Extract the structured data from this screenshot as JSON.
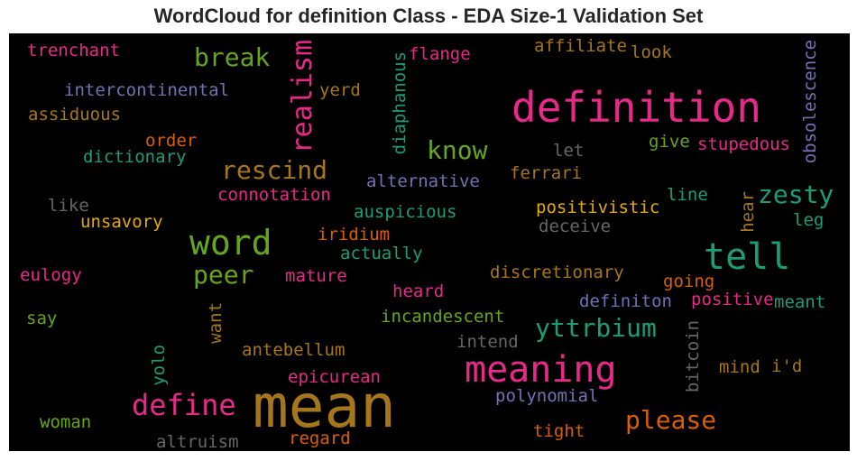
{
  "chart_data": {
    "type": "wordcloud",
    "title": "WordCloud for definition Class - EDA Size-1 Validation Set",
    "background": "#000000",
    "colors": {
      "pink": "#e7298a",
      "brown": "#a6761d",
      "green": "#66a61e",
      "teal": "#1b9e77",
      "orange": "#d95f02",
      "purple": "#7570b3",
      "yellow": "#e6ab02",
      "gray": "#666666"
    },
    "words": [
      {
        "text": "trenchant",
        "color": "pink"
      },
      {
        "text": "break",
        "color": "green"
      },
      {
        "text": "realism",
        "color": "pink"
      },
      {
        "text": "diaphanous",
        "color": "teal"
      },
      {
        "text": "flange",
        "color": "pink"
      },
      {
        "text": "affiliate",
        "color": "brown"
      },
      {
        "text": "look",
        "color": "brown"
      },
      {
        "text": "obsolescence",
        "color": "purple"
      },
      {
        "text": "intercontinental",
        "color": "purple"
      },
      {
        "text": "yerd",
        "color": "brown"
      },
      {
        "text": "definition",
        "color": "pink"
      },
      {
        "text": "assiduous",
        "color": "brown"
      },
      {
        "text": "order",
        "color": "orange"
      },
      {
        "text": "know",
        "color": "green"
      },
      {
        "text": "let",
        "color": "gray"
      },
      {
        "text": "give",
        "color": "green"
      },
      {
        "text": "stupedous",
        "color": "pink"
      },
      {
        "text": "dictionary",
        "color": "teal"
      },
      {
        "text": "rescind",
        "color": "brown"
      },
      {
        "text": "ferrari",
        "color": "brown"
      },
      {
        "text": "alternative",
        "color": "purple"
      },
      {
        "text": "zesty",
        "color": "teal"
      },
      {
        "text": "connotation",
        "color": "pink"
      },
      {
        "text": "line",
        "color": "teal"
      },
      {
        "text": "like",
        "color": "gray"
      },
      {
        "text": "auspicious",
        "color": "teal"
      },
      {
        "text": "positivistic",
        "color": "yellow"
      },
      {
        "text": "hear",
        "color": "brown"
      },
      {
        "text": "leg",
        "color": "teal"
      },
      {
        "text": "unsavory",
        "color": "yellow"
      },
      {
        "text": "deceive",
        "color": "gray"
      },
      {
        "text": "word",
        "color": "green"
      },
      {
        "text": "iridium",
        "color": "orange"
      },
      {
        "text": "tell",
        "color": "teal"
      },
      {
        "text": "actually",
        "color": "teal"
      },
      {
        "text": "peer",
        "color": "green"
      },
      {
        "text": "eulogy",
        "color": "pink"
      },
      {
        "text": "mature",
        "color": "pink"
      },
      {
        "text": "discretionary",
        "color": "brown"
      },
      {
        "text": "going",
        "color": "orange"
      },
      {
        "text": "heard",
        "color": "pink"
      },
      {
        "text": "positive",
        "color": "pink"
      },
      {
        "text": "meant",
        "color": "teal"
      },
      {
        "text": "definiton",
        "color": "purple"
      },
      {
        "text": "say",
        "color": "green"
      },
      {
        "text": "want",
        "color": "brown"
      },
      {
        "text": "incandescent",
        "color": "green"
      },
      {
        "text": "yttrbium",
        "color": "teal"
      },
      {
        "text": "intend",
        "color": "gray"
      },
      {
        "text": "bitcoin",
        "color": "gray"
      },
      {
        "text": "antebellum",
        "color": "brown"
      },
      {
        "text": "meaning",
        "color": "pink"
      },
      {
        "text": "yolo",
        "color": "teal"
      },
      {
        "text": "mind",
        "color": "brown"
      },
      {
        "text": "i'd",
        "color": "brown"
      },
      {
        "text": "epicurean",
        "color": "pink"
      },
      {
        "text": "define",
        "color": "pink"
      },
      {
        "text": "mean",
        "color": "brown"
      },
      {
        "text": "polynomial",
        "color": "purple"
      },
      {
        "text": "please",
        "color": "orange"
      },
      {
        "text": "woman",
        "color": "green"
      },
      {
        "text": "tight",
        "color": "orange"
      },
      {
        "text": "altruism",
        "color": "gray"
      },
      {
        "text": "regard",
        "color": "orange"
      }
    ]
  }
}
